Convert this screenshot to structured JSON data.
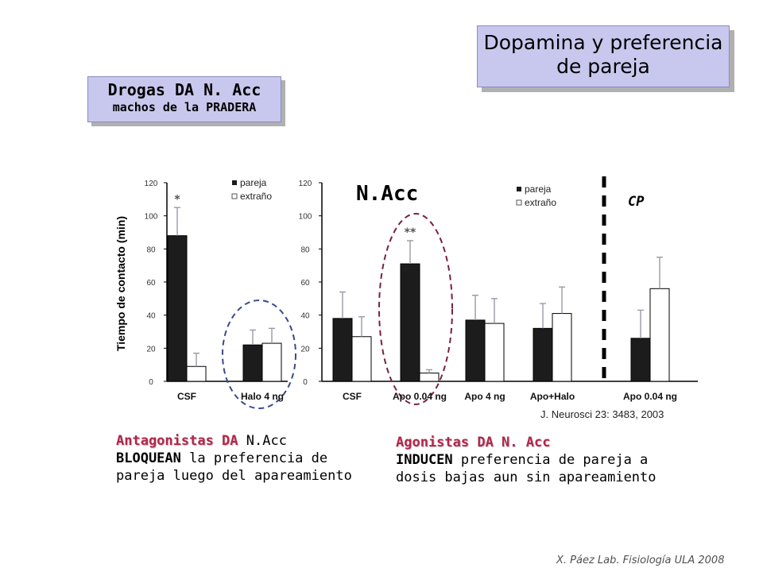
{
  "title": {
    "line1": "Dopamina y preferencia",
    "line2": "de pareja"
  },
  "subtitle_box": {
    "line1": "Drogas DA N. Acc",
    "line2": "machos de la PRADERA"
  },
  "citation": "J. Neurosci 23: 3483, 2003",
  "antagonists_text": {
    "highlight": "Antagonistas DA",
    "rest1": " N.Acc",
    "line2_bold": "BLOQUEAN",
    "line2_rest": " la preferencia de",
    "line3": "pareja luego del apareamiento"
  },
  "agonists_text": {
    "highlight": "Agonistas DA N. Acc",
    "line2_bold": "INDUCEN",
    "line2_rest": " preferencia de pareja a",
    "line3": "dosis bajas aun sin apareamiento"
  },
  "footer": "X. Páez  Lab. Fisiología ULA 2008",
  "colors": {
    "title_box": "#c8c8ee",
    "bar_dark": "#1c1c1c",
    "bar_light": "#ffffff",
    "ellipse_blue": "#3a4a8a",
    "ellipse_red": "#7a2040"
  },
  "chart_data": [
    {
      "type": "bar",
      "ylabel": "Tiempo de contacto (min)",
      "ylim": [
        0,
        120
      ],
      "yticks": [
        "0",
        "20",
        "40",
        "60",
        "80",
        "100",
        "120"
      ],
      "categories": [
        "CSF",
        "Halo 4 ng"
      ],
      "series": [
        {
          "name": "pareja",
          "values": [
            88,
            22
          ],
          "errors": [
            17,
            9
          ]
        },
        {
          "name": "extraño",
          "values": [
            9,
            23
          ],
          "errors": [
            8,
            9
          ]
        }
      ],
      "significance": [
        "*",
        ""
      ],
      "legend": [
        "pareja",
        "extraño"
      ],
      "legend_position": "top-right"
    },
    {
      "type": "bar",
      "annotations": [
        "N.Acc",
        "CP"
      ],
      "ylim": [
        0,
        120
      ],
      "yticks": [
        "0",
        "20",
        "40",
        "60",
        "80",
        "100",
        "120"
      ],
      "categories": [
        "CSF",
        "Apo 0.04 ng",
        "Apo 4 ng",
        "Apo+Halo",
        "Apo 0.04 ng"
      ],
      "series": [
        {
          "name": "pareja",
          "values": [
            38,
            71,
            37,
            32,
            26
          ],
          "errors": [
            16,
            14,
            15,
            15,
            17
          ]
        },
        {
          "name": "extraño",
          "values": [
            27,
            5,
            35,
            41,
            56
          ],
          "errors": [
            12,
            2,
            15,
            16,
            19
          ]
        }
      ],
      "significance": [
        "",
        "**",
        "",
        "",
        ""
      ],
      "legend": [
        "pareja",
        "extraño"
      ],
      "legend_position": "top"
    }
  ]
}
